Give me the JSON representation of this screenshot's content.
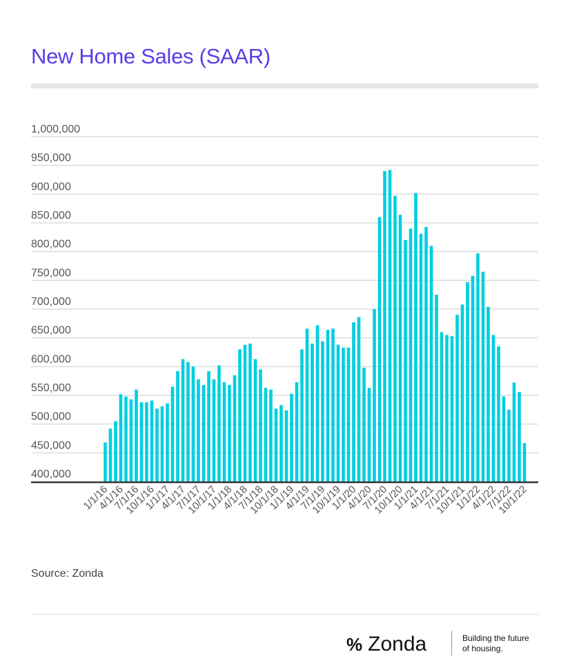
{
  "title": "New Home Sales (SAAR)",
  "source": "Source: Zonda",
  "footer": {
    "brand": "Zonda",
    "tagline_line1": "Building the future",
    "tagline_line2": "of housing."
  },
  "colors": {
    "bar": "#00cfe0",
    "title": "#5a3de6"
  },
  "chart_data": {
    "type": "bar",
    "title": "New Home Sales (SAAR)",
    "xlabel": "",
    "ylabel": "",
    "ylim": [
      400000,
      1000000
    ],
    "yticks": [
      "400,000",
      "450,000",
      "500,000",
      "550,000",
      "600,000",
      "650,000",
      "700,000",
      "750,000",
      "800,000",
      "850,000",
      "900,000",
      "950,000",
      "1,000,000"
    ],
    "ytick_values": [
      400000,
      450000,
      500000,
      550000,
      600000,
      650000,
      700000,
      750000,
      800000,
      850000,
      900000,
      950000,
      1000000
    ],
    "grid": true,
    "start": "1/1/16",
    "xtick_labels": [
      "1/1/16",
      "4/1/16",
      "7/1/16",
      "10/1/16",
      "1/1/17",
      "4/1/17",
      "7/1/17",
      "10/1/17",
      "1/1/18",
      "4/1/18",
      "7/1/18",
      "10/1/18",
      "1/1/19",
      "4/1/19",
      "7/1/19",
      "10/1/19",
      "1/1/20",
      "4/1/20",
      "7/1/20",
      "10/1/20",
      "1/1/21",
      "4/1/21",
      "7/1/21",
      "10/1/21",
      "1/1/22",
      "4/1/22",
      "7/1/22",
      "10/1/22"
    ],
    "values": [
      468000,
      492000,
      505000,
      552000,
      548000,
      543000,
      560000,
      538000,
      538000,
      541000,
      527000,
      531000,
      536000,
      565000,
      592000,
      613000,
      608000,
      600000,
      578000,
      568000,
      592000,
      578000,
      602000,
      573000,
      568000,
      585000,
      630000,
      638000,
      640000,
      613000,
      595000,
      563000,
      560000,
      527000,
      533000,
      524000,
      553000,
      573000,
      630000,
      666000,
      640000,
      672000,
      644000,
      664000,
      666000,
      638000,
      633000,
      633000,
      677000,
      686000,
      598000,
      563000,
      700000,
      860000,
      940000,
      942000,
      897000,
      864000,
      820000,
      840000,
      902000,
      831000,
      843000,
      810000,
      725000,
      660000,
      655000,
      653000,
      690000,
      708000,
      747000,
      758000,
      797000,
      765000,
      704000,
      655000,
      635000,
      548000,
      525000,
      572000,
      556000,
      467000
    ]
  }
}
